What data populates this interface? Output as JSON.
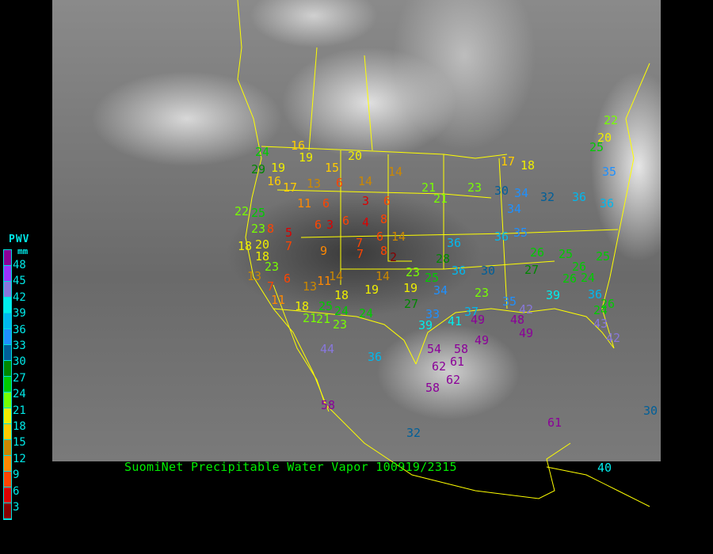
{
  "caption": "SuomiNet Precipitable Water Vapor 100919/2315",
  "legend": {
    "title": "PWV",
    "unit": "mm",
    "labels": [
      "48",
      "45",
      "42",
      "39",
      "36",
      "33",
      "30",
      "27",
      "24",
      "21",
      "18",
      "15",
      "12",
      "9",
      "6",
      "3"
    ],
    "colors": [
      "#8b0099",
      "#9933ff",
      "#8877dd",
      "#00eeee",
      "#00b8ee",
      "#1e90ff",
      "#005f99",
      "#008800",
      "#00cc00",
      "#77ff00",
      "#eeee00",
      "#ffcc00",
      "#cc8800",
      "#ff8800",
      "#ff4400",
      "#dd0000",
      "#880000"
    ]
  },
  "border_color": "#ffff00",
  "stations": [
    16,
    24,
    29,
    19,
    19,
    15,
    20,
    16,
    17,
    13,
    6,
    14,
    14,
    21,
    21,
    23,
    30,
    34,
    34,
    32,
    36,
    36,
    35,
    25,
    22,
    20,
    17,
    18,
    22,
    25,
    23,
    8,
    5,
    6,
    3,
    6,
    4,
    8,
    6,
    3,
    11,
    6,
    18,
    20,
    7,
    9,
    7,
    6,
    14,
    7,
    8,
    36,
    28,
    36,
    35,
    26,
    25,
    25,
    26,
    26,
    24,
    27,
    30,
    36,
    25,
    23,
    18,
    13,
    23,
    7,
    6,
    13,
    11,
    14,
    14,
    18,
    19,
    2,
    19,
    34,
    27,
    23,
    33,
    39,
    41,
    37,
    49,
    35,
    42,
    39,
    36,
    26,
    24,
    48,
    49,
    43,
    42,
    49,
    11,
    18,
    25,
    24,
    21,
    21,
    23,
    24,
    44,
    36,
    54,
    58,
    61,
    62,
    62,
    58,
    30,
    61,
    32,
    58,
    40
  ]
}
